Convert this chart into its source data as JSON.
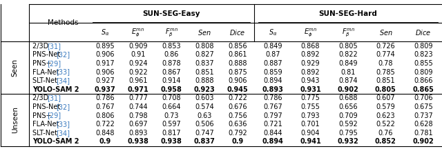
{
  "col_group_headers": [
    "SUN-SEG-Easy",
    "SUN-SEG-Hard"
  ],
  "sub_headers": [
    "$S_\\alpha$",
    "$E_\\phi^{mn}$",
    "$F_\\beta^{mn}$",
    "$Sen$",
    "$Dice$"
  ],
  "methods": [
    "2/3D [31]",
    "PNS-Net [32]",
    "PNS+ [29]",
    "FLA-Net [33]",
    "SLT-Net [34]",
    "YOLO-SAM 2"
  ],
  "seen_easy": [
    [
      0.895,
      0.909,
      0.853,
      0.808,
      0.856
    ],
    [
      0.906,
      0.91,
      0.86,
      0.827,
      0.861
    ],
    [
      0.917,
      0.924,
      0.878,
      0.837,
      0.888
    ],
    [
      0.906,
      0.922,
      0.867,
      0.851,
      0.875
    ],
    [
      0.927,
      0.961,
      0.914,
      0.888,
      0.906
    ],
    [
      0.937,
      0.971,
      0.958,
      0.923,
      0.945
    ]
  ],
  "seen_hard": [
    [
      0.849,
      0.868,
      0.805,
      0.726,
      0.809
    ],
    [
      0.87,
      0.892,
      0.822,
      0.774,
      0.823
    ],
    [
      0.887,
      0.929,
      0.849,
      0.78,
      0.855
    ],
    [
      0.859,
      0.892,
      0.81,
      0.785,
      0.809
    ],
    [
      0.894,
      0.943,
      0.874,
      0.851,
      0.866
    ],
    [
      0.893,
      0.931,
      0.902,
      0.805,
      0.865
    ]
  ],
  "unseen_easy": [
    [
      0.786,
      0.777,
      0.708,
      0.603,
      0.722
    ],
    [
      0.767,
      0.744,
      0.664,
      0.574,
      0.676
    ],
    [
      0.806,
      0.798,
      0.73,
      0.63,
      0.756
    ],
    [
      0.722,
      0.697,
      0.597,
      0.506,
      0.636
    ],
    [
      0.848,
      0.893,
      0.817,
      0.747,
      0.792
    ],
    [
      0.9,
      0.938,
      0.938,
      0.837,
      0.9
    ]
  ],
  "unseen_hard": [
    [
      0.786,
      0.775,
      0.688,
      0.607,
      0.706
    ],
    [
      0.767,
      0.755,
      0.656,
      0.579,
      0.675
    ],
    [
      0.797,
      0.793,
      0.709,
      0.623,
      0.737
    ],
    [
      0.721,
      0.701,
      0.592,
      0.522,
      0.628
    ],
    [
      0.844,
      0.904,
      0.795,
      0.76,
      0.781
    ],
    [
      0.894,
      0.941,
      0.932,
      0.852,
      0.902
    ]
  ],
  "ref_color": "#3a7abf",
  "seen_label": "Seen",
  "unseen_label": "Unseen",
  "methods_header": "Methods",
  "fs_main": 7.0,
  "fs_header": 7.5,
  "fs_group": 7.5
}
